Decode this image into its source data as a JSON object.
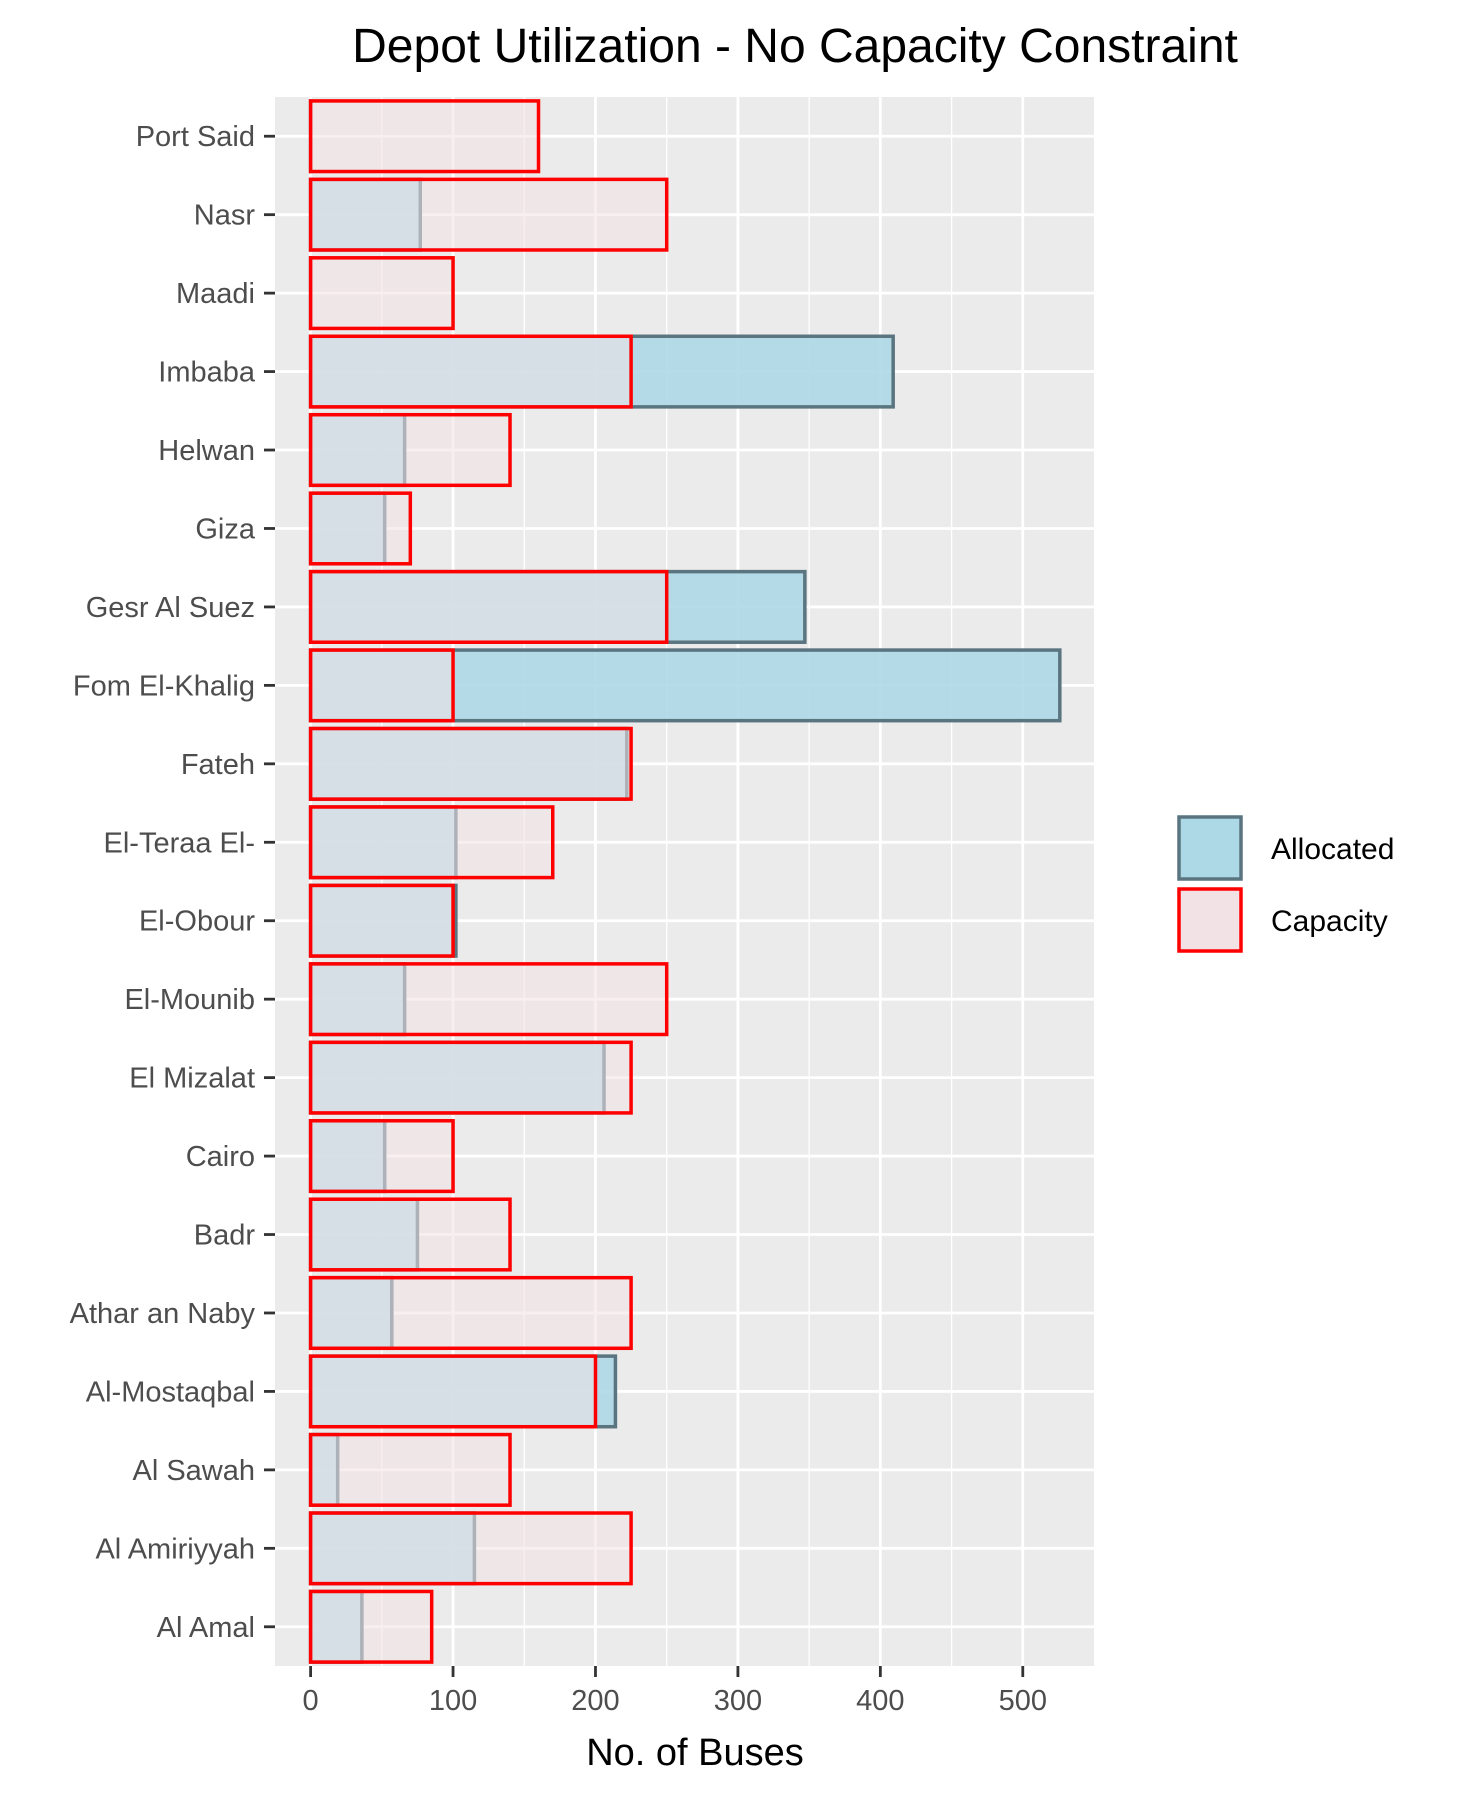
{
  "chart_data": {
    "type": "bar",
    "orientation": "horizontal",
    "title": "Depot Utilization - No Capacity Constraint",
    "xlabel": "No. of Buses",
    "ylabel": "",
    "xlim": [
      -25,
      550
    ],
    "xticks": [
      0,
      100,
      200,
      300,
      400,
      500
    ],
    "grid": true,
    "legend_position": "right",
    "categories": [
      "Port Said",
      "Nasr",
      "Maadi",
      "Imbaba",
      "Helwan",
      "Giza",
      "Gesr Al Suez",
      "Fom El-Khalig",
      "Fateh",
      "El-Teraa El-",
      "El-Obour",
      "El-Mounib",
      "El Mizalat",
      "Cairo",
      "Badr",
      "Athar an Naby",
      "Al-Mostaqbal",
      "Al Sawah",
      "Al Amiriyyah",
      "Al Amal"
    ],
    "series": [
      {
        "name": "Allocated",
        "fill": "#add8e6",
        "stroke": "#5a7580",
        "values": [
          0,
          77,
          0,
          409,
          66,
          52,
          347,
          526,
          222,
          102,
          102,
          66,
          206,
          52,
          75,
          57,
          214,
          19,
          115,
          36
        ]
      },
      {
        "name": "Capacity",
        "fill": "#f2e2e6",
        "stroke": "#ff0000",
        "values": [
          160,
          250,
          100,
          225,
          140,
          70,
          250,
          100,
          225,
          170,
          100,
          250,
          225,
          100,
          140,
          225,
          200,
          140,
          225,
          85
        ]
      }
    ]
  }
}
